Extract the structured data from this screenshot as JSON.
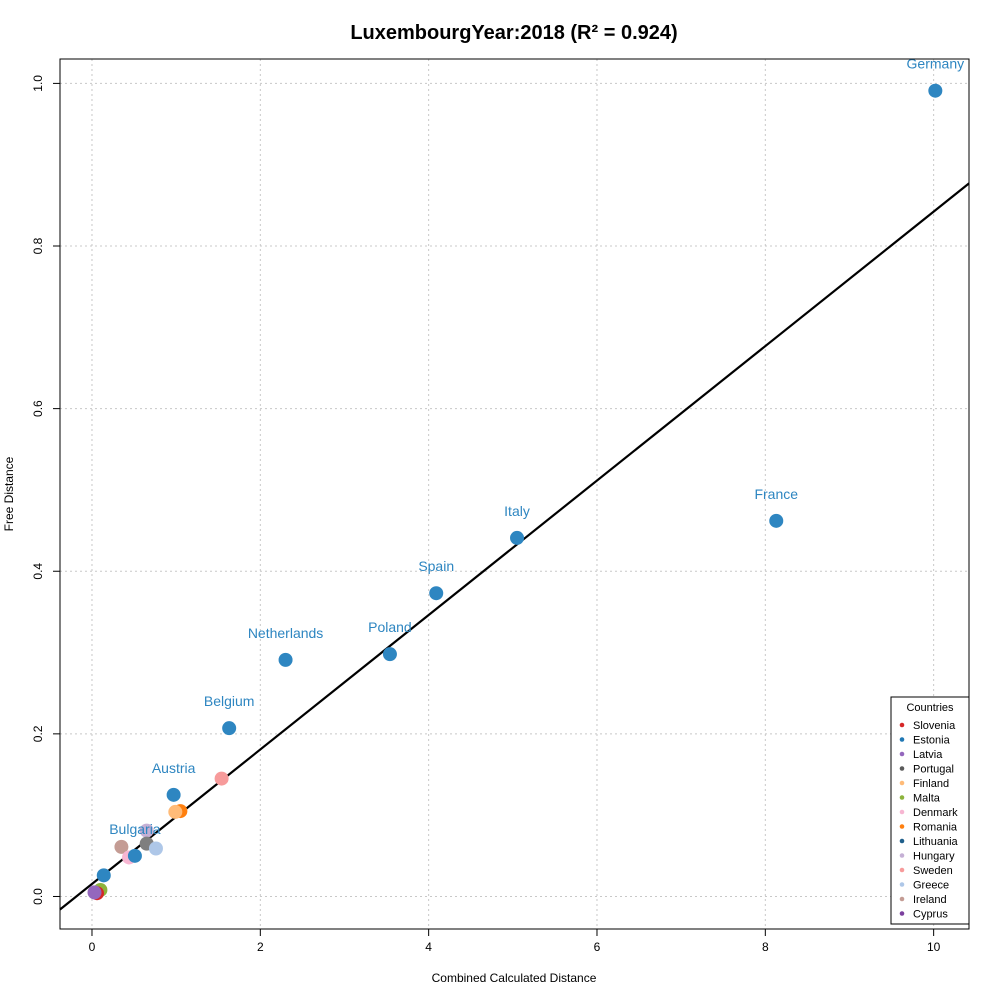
{
  "chart_data": {
    "type": "scatter",
    "title": "LuxembourgYear:2018 (R² = 0.924)",
    "xlabel": "Combined Calculated Distance",
    "ylabel": "Free Distance",
    "xlim": [
      -0.38,
      10.42
    ],
    "ylim": [
      -0.04,
      1.03
    ],
    "xticks": [
      0,
      2,
      4,
      6,
      8,
      10
    ],
    "yticks": [
      0.0,
      0.2,
      0.4,
      0.6,
      0.8,
      1.0
    ],
    "xtick_labels": [
      "0",
      "2",
      "4",
      "6",
      "8",
      "10"
    ],
    "ytick_labels": [
      "0.0",
      "0.2",
      "0.4",
      "0.6",
      "0.8",
      "1.0"
    ],
    "grid": true,
    "regression_line": {
      "x": [
        -0.38,
        10.42
      ],
      "y": [
        -0.016,
        0.877
      ],
      "color": "#000000"
    },
    "labeled_points": [
      {
        "label": "Germany",
        "x": 10.02,
        "y": 0.991,
        "color": "#2e86c1"
      },
      {
        "label": "France",
        "x": 8.13,
        "y": 0.462,
        "color": "#2e86c1"
      },
      {
        "label": "Italy",
        "x": 5.05,
        "y": 0.441,
        "color": "#2e86c1"
      },
      {
        "label": "Spain",
        "x": 4.09,
        "y": 0.373,
        "color": "#2e86c1"
      },
      {
        "label": "Poland",
        "x": 3.54,
        "y": 0.298,
        "color": "#2e86c1"
      },
      {
        "label": "Netherlands",
        "x": 2.3,
        "y": 0.291,
        "color": "#2e86c1"
      },
      {
        "label": "Belgium",
        "x": 1.63,
        "y": 0.207,
        "color": "#2e86c1"
      },
      {
        "label": "Austria",
        "x": 0.97,
        "y": 0.125,
        "color": "#2e86c1"
      },
      {
        "label": "Bulgaria",
        "x": 0.51,
        "y": 0.05,
        "color": "#2e86c1"
      }
    ],
    "other_points": [
      {
        "x": 1.54,
        "y": 0.145,
        "color": "#f79b9b"
      },
      {
        "x": 1.05,
        "y": 0.105,
        "color": "#ff7f0e"
      },
      {
        "x": 0.99,
        "y": 0.104,
        "color": "#ffbb78"
      },
      {
        "x": 0.65,
        "y": 0.081,
        "color": "#c5b0d5"
      },
      {
        "x": 0.65,
        "y": 0.065,
        "color": "#7f7f7f"
      },
      {
        "x": 0.35,
        "y": 0.061,
        "color": "#c49c94"
      },
      {
        "x": 0.76,
        "y": 0.059,
        "color": "#aec7e8"
      },
      {
        "x": 0.44,
        "y": 0.048,
        "color": "#f7b6d2"
      },
      {
        "x": 0.14,
        "y": 0.026,
        "color": "#2e86c1"
      },
      {
        "x": 0.1,
        "y": 0.008,
        "color": "#8cb33c"
      },
      {
        "x": 0.06,
        "y": 0.004,
        "color": "#d62728"
      },
      {
        "x": 0.03,
        "y": 0.005,
        "color": "#9467bd"
      }
    ],
    "legend": {
      "title": "Countries",
      "position": "bottom-right",
      "entries": [
        {
          "name": "Slovenia",
          "color": "#d62728"
        },
        {
          "name": "Estonia",
          "color": "#1f77b4"
        },
        {
          "name": "Latvia",
          "color": "#9467bd"
        },
        {
          "name": "Portugal",
          "color": "#5a5a5a"
        },
        {
          "name": "Finland",
          "color": "#ffbb78"
        },
        {
          "name": "Malta",
          "color": "#8cb33c"
        },
        {
          "name": "Denmark",
          "color": "#f7b6d2"
        },
        {
          "name": "Romania",
          "color": "#ff7f0e"
        },
        {
          "name": "Lithuania",
          "color": "#1f5f8b"
        },
        {
          "name": "Hungary",
          "color": "#c5b0d5"
        },
        {
          "name": "Sweden",
          "color": "#f79b9b"
        },
        {
          "name": "Greece",
          "color": "#aec7e8"
        },
        {
          "name": "Ireland",
          "color": "#c49c94"
        },
        {
          "name": "Cyprus",
          "color": "#7b3f9e"
        }
      ]
    }
  }
}
